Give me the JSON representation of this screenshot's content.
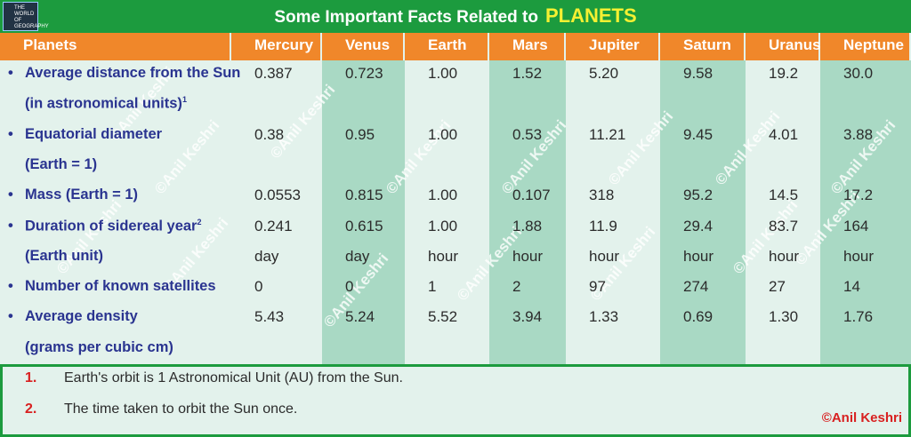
{
  "header": {
    "logo": "THE WORLD OF GEOGRAPHY",
    "title": "Some Important Facts Related to",
    "title_highlight": "PLANETS"
  },
  "table": {
    "columns": [
      "Planets",
      "Mercury",
      "Venus",
      "Earth",
      "Mars",
      "Jupiter",
      "Saturn",
      "Uranus",
      "Neptune"
    ],
    "rows": [
      {
        "label": [
          {
            "text": "Average distance from the Sun"
          },
          {
            "text": "(in astronomical units)",
            "note": "1"
          }
        ],
        "values": [
          "0.387",
          "0.723",
          "1.00",
          "1.52",
          "5.20",
          "9.58",
          "19.2",
          "30.0"
        ]
      },
      {
        "label": [
          {
            "text": "Equatorial diameter"
          },
          {
            "text": "(Earth = 1)"
          }
        ],
        "values": [
          "0.38",
          "0.95",
          "1.00",
          "0.53",
          "11.21",
          "9.45",
          "4.01",
          "3.88"
        ]
      },
      {
        "label": [
          {
            "text": "Mass (Earth = 1)"
          }
        ],
        "values": [
          "0.0553",
          "0.815",
          "1.00",
          "0.107",
          "318",
          "95.2",
          "14.5",
          "17.2"
        ]
      },
      {
        "label": [
          {
            "text": "Duration of sidereal year",
            "note": "2"
          },
          {
            "text": "(Earth unit)"
          }
        ],
        "values": [
          "0.241",
          "0.615",
          "1.00",
          "1.88",
          "11.9",
          "29.4",
          "83.7",
          "164"
        ],
        "units": [
          "day",
          "day",
          "hour",
          "hour",
          "hour",
          "hour",
          "hour",
          "hour"
        ]
      },
      {
        "label": [
          {
            "text": "Number of known satellites"
          }
        ],
        "values": [
          "0",
          "0",
          "1",
          "2",
          "97",
          "274",
          "27",
          "14"
        ]
      },
      {
        "label": [
          {
            "text": "Average density"
          },
          {
            "text": "(grams per cubic cm)"
          }
        ],
        "values": [
          "5.43",
          "5.24",
          "5.52",
          "3.94",
          "1.33",
          "0.69",
          "1.30",
          "1.76"
        ]
      }
    ]
  },
  "footnotes": [
    {
      "number": "1.",
      "text": "Earth's orbit is 1 Astronomical Unit (AU) from the Sun."
    },
    {
      "number": "2.",
      "text": "The time taken to orbit the Sun once."
    }
  ],
  "credit": "©Anil Keshri",
  "watermark": "©Anil Keshri"
}
